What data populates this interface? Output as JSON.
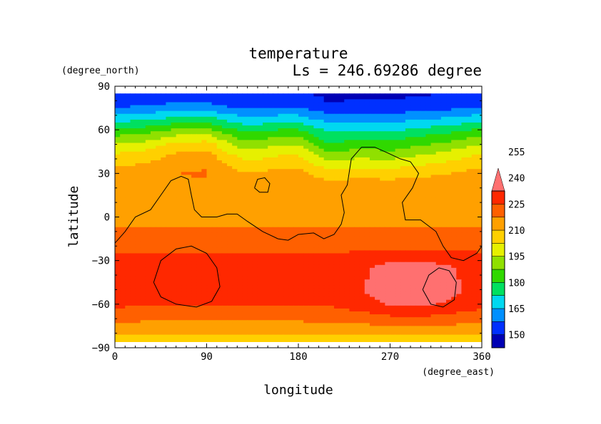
{
  "chart_data": {
    "type": "heatmap",
    "title": "temperature",
    "subtitle": "Ls = 246.69286 degree",
    "xlabel": "longitude",
    "ylabel": "latitude",
    "x_unit": "(degree_east)",
    "y_unit": "(degree_north)",
    "xlim": [
      0,
      360
    ],
    "ylim": [
      -90,
      90
    ],
    "x_ticks": [
      0,
      90,
      180,
      270,
      360
    ],
    "y_ticks": [
      90,
      60,
      30,
      0,
      -30,
      -60,
      -90
    ],
    "y_tick_labels": [
      "90",
      "60",
      "30",
      "0",
      "−30",
      "−60",
      "−90"
    ],
    "data_lat_range": [
      -87,
      85
    ],
    "colorbar": {
      "levels": [
        150,
        165,
        180,
        195,
        210,
        225,
        240,
        255
      ],
      "labels": [
        "150",
        "165",
        "180",
        "195",
        "210",
        "225",
        "240",
        "255"
      ],
      "colors": [
        "#0000b4",
        "#0030ff",
        "#0090ff",
        "#00d8f0",
        "#00e060",
        "#30d800",
        "#90e000",
        "#e6f000",
        "#ffd000",
        "#ffa000",
        "#ff6000",
        "#ff2800",
        "#ff7070"
      ],
      "extend": "max"
    },
    "contour": {
      "level_note": "black line = surface elevation 0 contour",
      "lines": [
        [
          [
            0,
            -18
          ],
          [
            10,
            -10
          ],
          [
            20,
            0
          ],
          [
            35,
            5
          ],
          [
            45,
            15
          ],
          [
            55,
            25
          ],
          [
            65,
            28
          ],
          [
            72,
            26
          ],
          [
            75,
            15
          ],
          [
            78,
            5
          ],
          [
            85,
            0
          ],
          [
            100,
            0
          ],
          [
            110,
            2
          ],
          [
            120,
            2
          ],
          [
            130,
            -3
          ],
          [
            145,
            -10
          ],
          [
            160,
            -15
          ],
          [
            170,
            -16
          ],
          [
            180,
            -12
          ],
          [
            195,
            -11
          ],
          [
            205,
            -15
          ],
          [
            215,
            -12
          ],
          [
            222,
            -5
          ],
          [
            225,
            3
          ],
          [
            222,
            15
          ],
          [
            228,
            22
          ],
          [
            232,
            40
          ],
          [
            242,
            48
          ],
          [
            255,
            48
          ],
          [
            268,
            44
          ],
          [
            280,
            40
          ],
          [
            290,
            38
          ],
          [
            298,
            30
          ],
          [
            292,
            20
          ],
          [
            282,
            10
          ],
          [
            285,
            -2
          ],
          [
            300,
            -2
          ],
          [
            315,
            -10
          ],
          [
            322,
            -20
          ],
          [
            330,
            -28
          ],
          [
            342,
            -30
          ],
          [
            355,
            -25
          ],
          [
            360,
            -20
          ]
        ],
        [
          [
            137,
            20
          ],
          [
            140,
            26
          ],
          [
            147,
            27
          ],
          [
            152,
            23
          ],
          [
            150,
            17
          ],
          [
            142,
            17
          ],
          [
            137,
            20
          ]
        ],
        [
          [
            38,
            -45
          ],
          [
            45,
            -30
          ],
          [
            60,
            -22
          ],
          [
            75,
            -20
          ],
          [
            90,
            -25
          ],
          [
            100,
            -35
          ],
          [
            103,
            -48
          ],
          [
            95,
            -58
          ],
          [
            80,
            -62
          ],
          [
            60,
            -60
          ],
          [
            45,
            -55
          ],
          [
            38,
            -45
          ]
        ],
        [
          [
            302,
            -50
          ],
          [
            308,
            -40
          ],
          [
            318,
            -35
          ],
          [
            328,
            -37
          ],
          [
            335,
            -45
          ],
          [
            333,
            -57
          ],
          [
            322,
            -62
          ],
          [
            310,
            -60
          ],
          [
            302,
            -50
          ]
        ]
      ]
    },
    "lat_profile": [
      [
        85,
        150
      ],
      [
        80,
        152
      ],
      [
        75,
        156
      ],
      [
        70,
        163
      ],
      [
        65,
        170
      ],
      [
        60,
        177
      ],
      [
        55,
        184
      ],
      [
        50,
        190
      ],
      [
        45,
        196
      ],
      [
        40,
        201
      ],
      [
        35,
        206
      ],
      [
        30,
        210
      ],
      [
        25,
        213
      ],
      [
        20,
        215
      ],
      [
        15,
        216
      ],
      [
        10,
        217
      ],
      [
        5,
        217
      ],
      [
        0,
        217
      ],
      [
        -5,
        217
      ],
      [
        -10,
        218
      ],
      [
        -15,
        219
      ],
      [
        -20,
        221
      ],
      [
        -25,
        225
      ],
      [
        -30,
        226
      ],
      [
        -35,
        227
      ],
      [
        -40,
        227
      ],
      [
        -45,
        228
      ],
      [
        -50,
        228
      ],
      [
        -55,
        227
      ],
      [
        -60,
        225
      ],
      [
        -65,
        222
      ],
      [
        -70,
        219
      ],
      [
        -75,
        215
      ],
      [
        -80,
        210
      ],
      [
        -85,
        207
      ],
      [
        -87,
        206
      ]
    ],
    "lon_perturbation": {
      "north": [
        [
          0,
          4
        ],
        [
          30,
          6
        ],
        [
          60,
          11
        ],
        [
          90,
          12
        ],
        [
          110,
          5
        ],
        [
          130,
          0
        ],
        [
          160,
          3
        ],
        [
          180,
          3
        ],
        [
          210,
          -7
        ],
        [
          240,
          -5
        ],
        [
          270,
          -6
        ],
        [
          300,
          -3
        ],
        [
          330,
          0
        ],
        [
          360,
          4
        ]
      ],
      "south": [
        [
          0,
          2
        ],
        [
          30,
          0
        ],
        [
          60,
          0
        ],
        [
          90,
          0
        ],
        [
          120,
          0
        ],
        [
          150,
          0
        ],
        [
          180,
          0
        ],
        [
          210,
          1
        ],
        [
          240,
          4
        ],
        [
          270,
          8
        ],
        [
          300,
          9
        ],
        [
          330,
          6
        ],
        [
          360,
          2
        ]
      ]
    }
  }
}
